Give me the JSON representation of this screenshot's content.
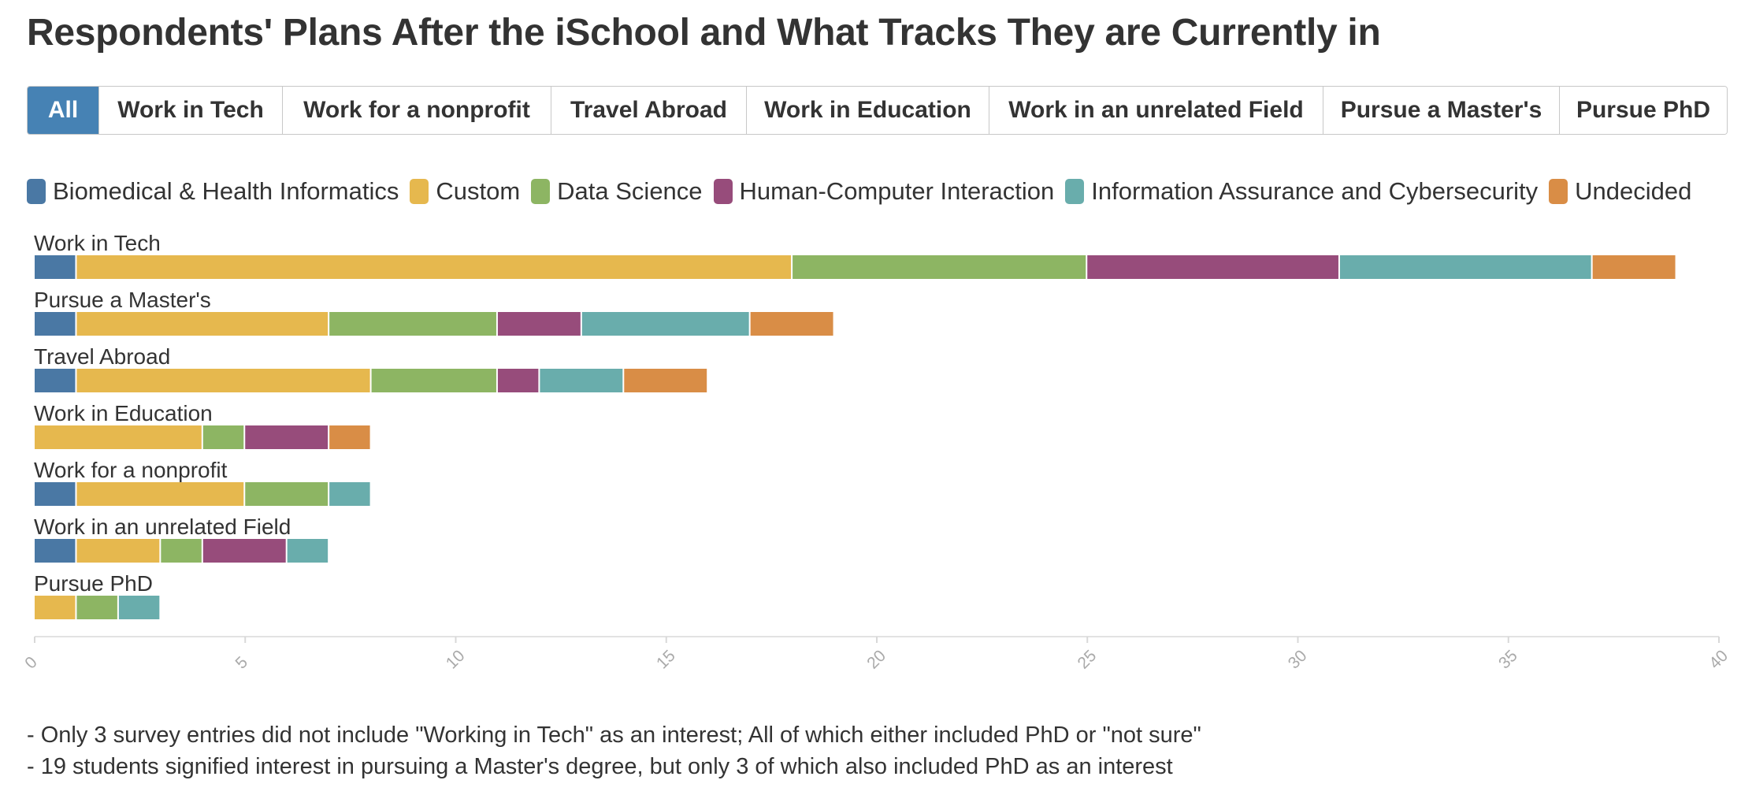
{
  "title": "Respondents' Plans After the iSchool and What Tracks They are Currently in",
  "filters": [
    {
      "label": "All",
      "active": true
    },
    {
      "label": "Work in Tech",
      "active": false
    },
    {
      "label": "Work for a nonprofit",
      "active": false
    },
    {
      "label": "Travel Abroad",
      "active": false
    },
    {
      "label": "Work in Education",
      "active": false
    },
    {
      "label": "Work in an unrelated Field",
      "active": false
    },
    {
      "label": "Pursue a Master's",
      "active": false
    },
    {
      "label": "Pursue PhD",
      "active": false
    }
  ],
  "colors": {
    "active_filter": "#4682b4"
  },
  "chart_data": {
    "type": "bar",
    "orientation": "horizontal",
    "stacked": true,
    "categories": [
      "Work in Tech",
      "Pursue a Master's",
      "Travel Abroad",
      "Work in Education",
      "Work for a nonprofit",
      "Work in an unrelated Field",
      "Pursue PhD"
    ],
    "series": [
      {
        "name": "Biomedical & Health Informatics",
        "color": "#4a78a4",
        "values": [
          1,
          1,
          1,
          0,
          1,
          1,
          0
        ]
      },
      {
        "name": "Custom",
        "color": "#e6b84e",
        "values": [
          17,
          6,
          7,
          4,
          4,
          2,
          1
        ]
      },
      {
        "name": "Data Science",
        "color": "#8db563",
        "values": [
          7,
          4,
          3,
          1,
          2,
          1,
          1
        ]
      },
      {
        "name": "Human-Computer Interaction",
        "color": "#974c7b",
        "values": [
          6,
          2,
          1,
          2,
          0,
          2,
          0
        ]
      },
      {
        "name": "Information Assurance and Cybersecurity",
        "color": "#69adac",
        "values": [
          6,
          4,
          2,
          0,
          1,
          1,
          1
        ]
      },
      {
        "name": "Undecided",
        "color": "#d98d46",
        "values": [
          2,
          2,
          2,
          1,
          0,
          0,
          0
        ]
      }
    ],
    "xlim": [
      0,
      40
    ],
    "xticks": [
      "0",
      "5",
      "10",
      "15",
      "20",
      "25",
      "30",
      "35",
      "40"
    ],
    "legend_position": "top"
  },
  "notes": [
    "- Only 3 survey entries did not include \"Working in Tech\" as an interest; All of which either included PhD or \"not sure\"",
    "- 19 students signified interest in pursuing a Master's degree, but only 3 of which also included PhD as an interest"
  ]
}
